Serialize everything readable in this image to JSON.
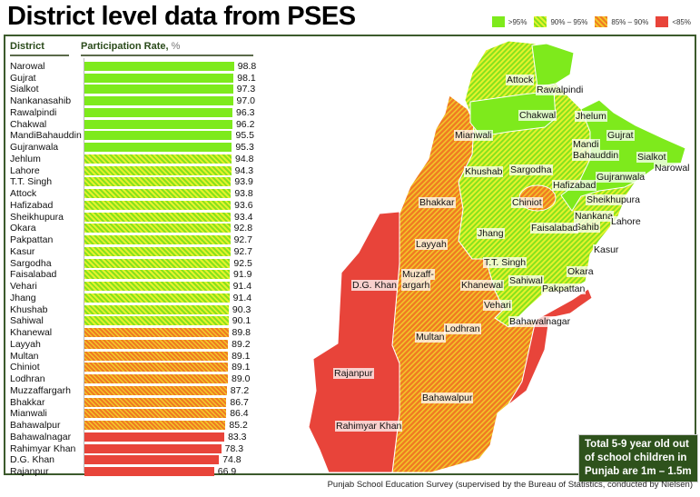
{
  "title": "District level data from PSES",
  "legend": [
    {
      "label": ">95%",
      "color": "#7eea1c",
      "hatch": false
    },
    {
      "label": "90% – 95%",
      "color": "#e6f22c",
      "hatch": true
    },
    {
      "label": "85% – 90%",
      "color": "#f07a22",
      "hatch": true
    },
    {
      "label": "<85%",
      "color": "#e8443a",
      "hatch": false
    }
  ],
  "headers": {
    "district": "District",
    "rate": "Participation Rate, ",
    "unit": "%"
  },
  "chart_data": {
    "type": "bar",
    "title": "District level data from PSES",
    "xlabel": "Participation Rate, %",
    "ylabel": "District",
    "categories": [
      "Narowal",
      "Gujrat",
      "Sialkot",
      "Nankanasahib",
      "Rawalpindi",
      "Chakwal",
      "MandiBahauddin",
      "Gujranwala",
      "Jehlum",
      "Lahore",
      "T.T. Singh",
      "Attock",
      "Hafizabad",
      "Sheikhupura",
      "Okara",
      "Pakpattan",
      "Kasur",
      "Sargodha",
      "Faisalabad",
      "Vehari",
      "Jhang",
      "Khushab",
      "Sahiwal",
      "Khanewal",
      "Layyah",
      "Multan",
      "Chiniot",
      "Lodhran",
      "Muzzaffargarh",
      "Bhakkar",
      "Mianwali",
      "Bahawalpur",
      "Bahawalnagar",
      "Rahimyar Khan",
      "D.G. Khan",
      "Rajanpur"
    ],
    "values": [
      98.8,
      98.1,
      97.3,
      97.0,
      96.3,
      96.2,
      95.5,
      95.3,
      94.8,
      94.3,
      93.9,
      93.8,
      93.6,
      93.4,
      92.8,
      92.7,
      92.7,
      92.5,
      91.9,
      91.4,
      91.4,
      90.3,
      90.1,
      89.8,
      89.2,
      89.1,
      89.1,
      89.0,
      87.2,
      86.7,
      86.4,
      85.2,
      83.3,
      78.3,
      74.8,
      66.9
    ]
  },
  "map_labels": [
    "Attock",
    "Rawalpindi",
    "Chakwal",
    "Jhelum",
    "Mianwali",
    "Gujrat",
    "Mandi",
    "Bahauddin",
    "Sialkot",
    "Narowal",
    "Khushab",
    "Sargodha",
    "Gujranwala",
    "Hafizabad",
    "Bhakkar",
    "Chiniot",
    "Sheikhupura",
    "Nankana",
    "Sahib",
    "Lahore",
    "Faisalabad",
    "Jhang",
    "Layyah",
    "Kasur",
    "T.T. Singh",
    "Okara",
    "Muzaff-",
    "argarh",
    "D.G. Khan",
    "Khanewal",
    "Sahiwal",
    "Pakpattan",
    "Vehari",
    "Bahawalnagar",
    "Lodhran",
    "Multan",
    "Rajanpur",
    "Bahawalpur",
    "Rahimyar Khan"
  ],
  "note": [
    "Total 5-9 year old out",
    "of school children in",
    "Punjab are 1m – 1.5m"
  ],
  "footer": "Punjab School Education Survey (supervised by the Bureau of Statistics, conducted by Nielsen)"
}
